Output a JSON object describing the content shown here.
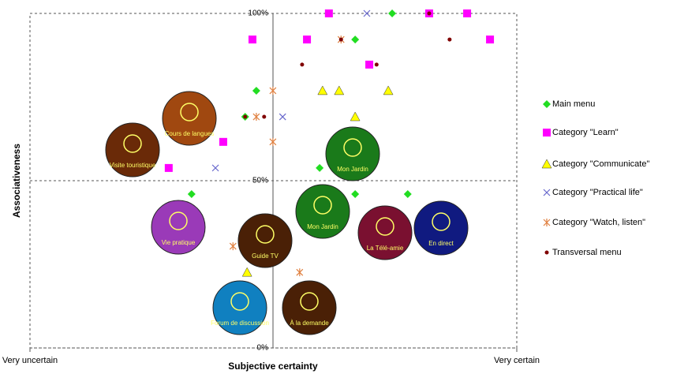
{
  "chart_data": {
    "type": "scatter",
    "x_label": "Subjective certainty",
    "y_label": "Associativeness",
    "xlim": [
      0,
      100
    ],
    "ylim": [
      0,
      100
    ],
    "xticks": [
      {
        "value": 0,
        "label": "Very uncertain"
      },
      {
        "value": 100,
        "label": "Very certain"
      }
    ],
    "yticks": [
      {
        "value": 0,
        "label": "0%"
      },
      {
        "value": 50,
        "label": "50%"
      },
      {
        "value": 100,
        "label": "100%"
      }
    ],
    "grid": true,
    "legend": "right",
    "series": [
      {
        "name": "Main menu",
        "color": "#22dd22",
        "marker": "diamond",
        "x": [
          74.4,
          66.8,
          46.5,
          44.2,
          59.5,
          66.8,
          33.2,
          77.6
        ],
        "values": [
          100,
          92.2,
          76.9,
          69.1,
          53.8,
          46.0,
          46.0,
          46.0
        ]
      },
      {
        "name": "Category \"Learn\"",
        "color": "#ff00ff",
        "marker": "square",
        "x": [
          61.4,
          82.0,
          89.8,
          45.7,
          56.9,
          94.5,
          69.7,
          39.7,
          28.5
        ],
        "values": [
          100,
          100,
          100,
          92.2,
          92.2,
          92.2,
          84.7,
          61.6,
          53.8
        ]
      },
      {
        "name": "Category \"Communicate\"",
        "color": "#ffff00",
        "marker": "triangle",
        "x": [
          60.1,
          63.5,
          73.6,
          66.8,
          44.6
        ],
        "values": [
          76.9,
          76.9,
          76.9,
          69.1,
          22.6
        ]
      },
      {
        "name": "Category \"Practical life\"",
        "color": "#6666cc",
        "marker": "x",
        "x": [
          69.2,
          51.9,
          38.1
        ],
        "values": [
          100,
          69.1,
          53.8
        ]
      },
      {
        "name": "Category \"Watch, listen\"",
        "color": "#e08040",
        "marker": "asterisk",
        "x": [
          63.9,
          49.9,
          46.5,
          49.9,
          41.7,
          55.4
        ],
        "values": [
          92.2,
          76.9,
          69.1,
          61.6,
          30.4,
          22.6
        ]
      },
      {
        "name": "Transversal menu",
        "color": "#800000",
        "marker": "circle",
        "x": [
          82.0,
          63.9,
          86.2,
          55.9,
          71.2,
          44.2,
          48.1
        ],
        "values": [
          100,
          92.2,
          92.2,
          84.7,
          84.7,
          69.1,
          69.1
        ]
      }
    ],
    "icons": [
      "Cours de langues",
      "Visite touristique",
      "Mon Jardin",
      "Vie pratique",
      "Mon Jardin",
      "Guide TV",
      "La Télé-amie",
      "En direct",
      "Forum de discussion",
      "À la demande"
    ]
  }
}
